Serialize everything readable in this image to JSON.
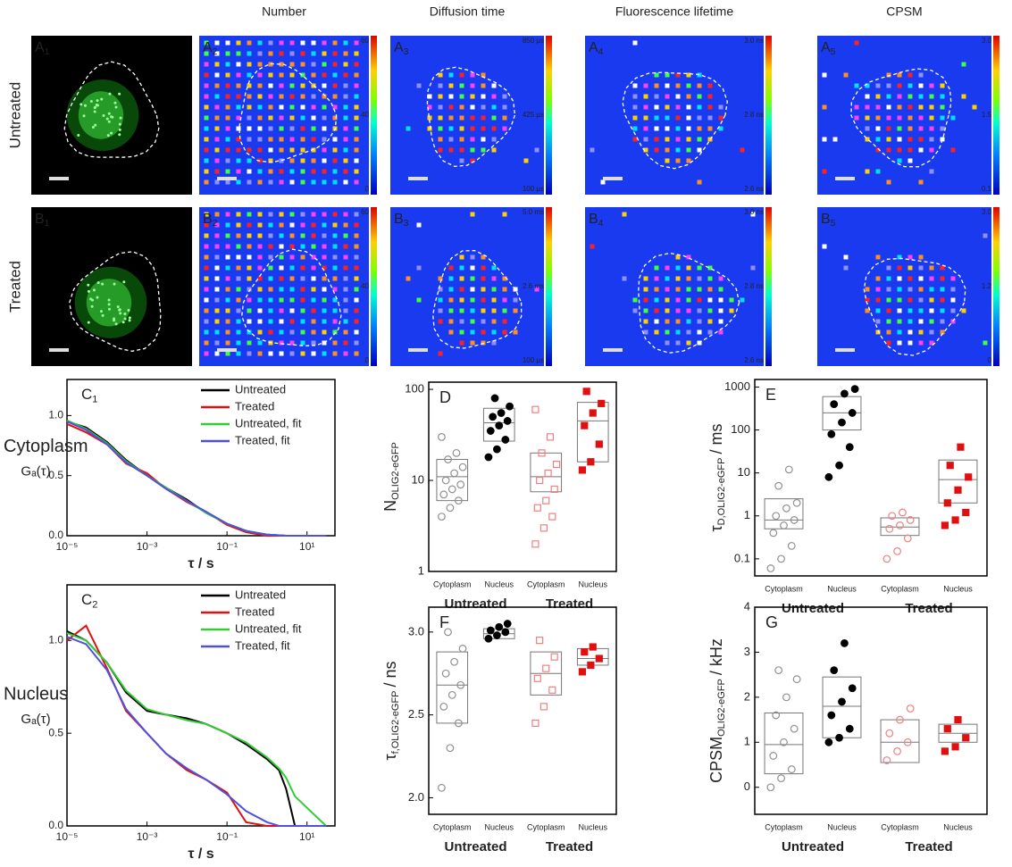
{
  "figure": {
    "row_labels": [
      "Untreated",
      "Treated"
    ],
    "column_titles": [
      "Number",
      "Diffusion time",
      "Fluorescence lifetime",
      "CPSM"
    ],
    "image_panels": [
      {
        "letter": "A",
        "sub": "1"
      },
      {
        "letter": "A",
        "sub": "2"
      },
      {
        "letter": "A",
        "sub": "3"
      },
      {
        "letter": "A",
        "sub": "4"
      },
      {
        "letter": "A",
        "sub": "5"
      },
      {
        "letter": "B",
        "sub": "1"
      },
      {
        "letter": "B",
        "sub": "2"
      },
      {
        "letter": "B",
        "sub": "3"
      },
      {
        "letter": "B",
        "sub": "4"
      },
      {
        "letter": "B",
        "sub": "5"
      }
    ],
    "colorbars": [
      {
        "panel": 1,
        "labels": [
          60,
          40,
          0
        ]
      },
      {
        "panel": 2,
        "labels": [
          "850 µs",
          "425 µs",
          "100 µs"
        ]
      },
      {
        "panel": 3,
        "labels": [
          "3.0 ns",
          "2.8 ns",
          "2.6 ns"
        ]
      },
      {
        "panel": 4,
        "labels": [
          "3.0",
          1.5,
          0.1
        ]
      },
      {
        "panel": 6,
        "labels": [
          60,
          40,
          0
        ]
      },
      {
        "panel": 7,
        "labels": [
          "5.0 ms",
          "2.6 ms",
          "100 µs"
        ]
      },
      {
        "panel": 8,
        "labels": [
          "3.0 ns",
          "2.8 ns",
          "2.6 ns"
        ]
      },
      {
        "panel": 9,
        "labels": [
          "3.0",
          1.2,
          0
        ]
      }
    ]
  },
  "chart_data": [
    {
      "type": "line",
      "label": {
        "letter": "C",
        "sub": "1"
      },
      "row_label": "Cytoplasm",
      "ylabel": "Gₐ(τ)",
      "xlabel": "τ / s",
      "log_x": true,
      "x": [
        1e-05,
        3e-05,
        0.0001,
        0.0003,
        0.001,
        0.003,
        0.01,
        0.03,
        0.1,
        0.3,
        1,
        3,
        30
      ],
      "xlim": [
        1e-05,
        50
      ],
      "ylim": [
        0,
        1.3
      ],
      "xticks": [
        {
          "value": 1e-05,
          "label": "10⁻⁵"
        },
        {
          "value": 0.001,
          "label": "10⁻³"
        },
        {
          "value": 0.1,
          "label": "10⁻¹"
        },
        {
          "value": 10,
          "label": "10¹"
        }
      ],
      "yticks": [
        {
          "value": 0,
          "label": "0.0"
        },
        0.5,
        {
          "value": 1,
          "label": "1.0"
        }
      ],
      "series": [
        {
          "name": "Untreated",
          "color": "#000000",
          "values": [
            0.95,
            0.9,
            0.78,
            0.63,
            0.5,
            0.4,
            0.3,
            0.19,
            0.1,
            0.04,
            0.01,
            0,
            0
          ]
        },
        {
          "name": "Treated",
          "color": "#e01010",
          "values": [
            0.93,
            0.86,
            0.76,
            0.6,
            0.52,
            0.39,
            0.28,
            0.2,
            0.09,
            0.03,
            0,
            0,
            0
          ]
        },
        {
          "name": "Untreated, fit",
          "color": "#33cc33",
          "values": [
            0.96,
            0.89,
            0.77,
            0.62,
            0.5,
            0.4,
            0.29,
            0.19,
            0.1,
            0.04,
            0.01,
            0,
            0
          ]
        },
        {
          "name": "Treated, fit",
          "color": "#5050e0",
          "values": [
            0.95,
            0.88,
            0.76,
            0.61,
            0.5,
            0.39,
            0.29,
            0.2,
            0.1,
            0.04,
            0.01,
            0,
            0
          ]
        }
      ]
    },
    {
      "type": "line",
      "label": {
        "letter": "C",
        "sub": "2"
      },
      "row_label": "Nucleus",
      "ylabel": "Gₐ(τ)",
      "xlabel": "τ / s",
      "log_x": true,
      "x": [
        1e-05,
        3e-05,
        0.0001,
        0.0003,
        0.001,
        0.003,
        0.01,
        0.03,
        0.1,
        0.3,
        1,
        2,
        3,
        5,
        30
      ],
      "xlim": [
        1e-05,
        50
      ],
      "ylim": [
        0,
        1.3
      ],
      "xticks": [
        {
          "value": 1e-05,
          "label": "10⁻⁵"
        },
        {
          "value": 0.001,
          "label": "10⁻³"
        },
        {
          "value": 0.1,
          "label": "10⁻¹"
        },
        {
          "value": 10,
          "label": "10¹"
        }
      ],
      "yticks": [
        {
          "value": 0,
          "label": "0.0"
        },
        0.5,
        {
          "value": 1,
          "label": "1.0"
        }
      ],
      "series": [
        {
          "name": "Untreated",
          "color": "#000000",
          "values": [
            1.05,
            1.0,
            0.88,
            0.72,
            0.62,
            0.6,
            0.58,
            0.55,
            0.5,
            0.44,
            0.36,
            0.3,
            0.2,
            0,
            0
          ]
        },
        {
          "name": "Treated",
          "color": "#e01010",
          "values": [
            1.0,
            1.08,
            0.85,
            0.62,
            0.5,
            0.39,
            0.3,
            0.25,
            0.18,
            0.02,
            0,
            0,
            0,
            0,
            0
          ]
        },
        {
          "name": "Untreated, fit",
          "color": "#33cc33",
          "values": [
            1.04,
            1.0,
            0.88,
            0.73,
            0.63,
            0.6,
            0.57,
            0.55,
            0.5,
            0.45,
            0.37,
            0.31,
            0.26,
            0.16,
            0
          ]
        },
        {
          "name": "Treated, fit",
          "color": "#5050e0",
          "values": [
            1.02,
            0.98,
            0.84,
            0.63,
            0.5,
            0.39,
            0.31,
            0.25,
            0.17,
            0.08,
            0.02,
            0,
            0,
            0,
            0
          ]
        }
      ]
    },
    {
      "type": "box",
      "label": "D",
      "ylabel": {
        "main": "N",
        "sub": "OLIG2-eGFP"
      },
      "log_y": true,
      "categories": [
        "Cytoplasm",
        "Nucleus",
        "Cytoplasm",
        "Nucleus"
      ],
      "group_labels": [
        "Untreated",
        "Treated"
      ],
      "colors": [
        "#909090",
        "#000000",
        "#f08080",
        "#e01010"
      ],
      "filled": [
        false,
        true,
        false,
        true
      ],
      "markers": [
        "circle",
        "circle",
        "square",
        "square"
      ],
      "ylim": [
        1,
        120
      ],
      "yticks": [
        1,
        10,
        100
      ],
      "boxes": [
        [
          6,
          11,
          17
        ],
        [
          27,
          43,
          62
        ],
        [
          7.5,
          11,
          20
        ],
        [
          16,
          45,
          72
        ]
      ],
      "points": [
        [
          4,
          5,
          6,
          7,
          8,
          9,
          10,
          12,
          14,
          17,
          20,
          30
        ],
        [
          18,
          22,
          28,
          35,
          40,
          45,
          50,
          55,
          65,
          80
        ],
        [
          2,
          3,
          4,
          5,
          6,
          8,
          10,
          12,
          15,
          20,
          30,
          60
        ],
        [
          13,
          16,
          25,
          40,
          55,
          70,
          95
        ]
      ]
    },
    {
      "type": "box",
      "label": "E",
      "ylabel": {
        "main": "τ",
        "sub": "D,OLIG2-eGFP",
        "unit": "/ ms"
      },
      "log_y": true,
      "categories": [
        "Cytoplasm",
        "Nucleus",
        "Cytoplasm",
        "Nucleus"
      ],
      "group_labels": [
        "Untreated",
        "Treated"
      ],
      "colors": [
        "#909090",
        "#000000",
        "#f08080",
        "#e01010"
      ],
      "filled": [
        false,
        true,
        false,
        true
      ],
      "markers": [
        "circle",
        "circle",
        "circle",
        "square"
      ],
      "ylim": [
        0.04,
        1500
      ],
      "yticks": [
        0.1,
        1,
        10,
        100,
        1000
      ],
      "boxes": [
        [
          0.5,
          0.8,
          2.5
        ],
        [
          100,
          250,
          600
        ],
        [
          0.35,
          0.55,
          0.9
        ],
        [
          2,
          7,
          20
        ]
      ],
      "points": [
        [
          0.06,
          0.1,
          0.2,
          0.4,
          0.6,
          0.8,
          1,
          1.5,
          2,
          5,
          12
        ],
        [
          8,
          15,
          40,
          80,
          150,
          250,
          400,
          700,
          900
        ],
        [
          0.1,
          0.15,
          0.3,
          0.5,
          0.6,
          0.8,
          1,
          1.2
        ],
        [
          0.6,
          0.8,
          1.2,
          2,
          4,
          8,
          15,
          40
        ]
      ]
    },
    {
      "type": "box",
      "label": "F",
      "ylabel": {
        "main": "τ",
        "sub": "f,OLIG2-eGFP",
        "unit": "/ ns"
      },
      "log_y": false,
      "categories": [
        "Cytoplasm",
        "Nucleus",
        "Cytoplasm",
        "Nucleus"
      ],
      "group_labels": [
        "Untreated",
        "Treated"
      ],
      "colors": [
        "#909090",
        "#000000",
        "#f08080",
        "#e01010"
      ],
      "filled": [
        false,
        true,
        false,
        true
      ],
      "markers": [
        "circle",
        "circle",
        "square",
        "square"
      ],
      "ylim": [
        1.9,
        3.15
      ],
      "yticks": [
        {
          "value": 2,
          "label": "2.0"
        },
        2.5,
        {
          "value": 3,
          "label": "3.0"
        }
      ],
      "boxes": [
        [
          2.45,
          2.68,
          2.88
        ],
        [
          2.96,
          2.99,
          3.02
        ],
        [
          2.62,
          2.75,
          2.88
        ],
        [
          2.8,
          2.84,
          2.9
        ]
      ],
      "points": [
        [
          2.06,
          2.3,
          2.45,
          2.55,
          2.62,
          2.68,
          2.75,
          2.82,
          2.9,
          3.0
        ],
        [
          2.96,
          2.98,
          3.0,
          3.01,
          3.03,
          3.05
        ],
        [
          2.45,
          2.55,
          2.65,
          2.72,
          2.78,
          2.85,
          2.95
        ],
        [
          2.76,
          2.8,
          2.84,
          2.88,
          2.91
        ]
      ]
    },
    {
      "type": "box",
      "label": "G",
      "ylabel": {
        "main": "CPSM",
        "sub": "OLIG2-eGFP",
        "unit": "/ kHz"
      },
      "log_y": false,
      "categories": [
        "Cytoplasm",
        "Nucleus",
        "Cytoplasm",
        "Nucleus"
      ],
      "group_labels": [
        "Untreated",
        "Treated"
      ],
      "colors": [
        "#909090",
        "#000000",
        "#f08080",
        "#e01010"
      ],
      "filled": [
        false,
        true,
        false,
        true
      ],
      "markers": [
        "circle",
        "circle",
        "circle",
        "square"
      ],
      "ylim": [
        -0.6,
        4
      ],
      "yticks": [
        0,
        1,
        2,
        3,
        4
      ],
      "boxes": [
        [
          0.3,
          0.95,
          1.65
        ],
        [
          1.1,
          1.8,
          2.45
        ],
        [
          0.55,
          1,
          1.5
        ],
        [
          1,
          1.2,
          1.4
        ]
      ],
      "points": [
        [
          0,
          0.2,
          0.4,
          0.7,
          1,
          1.3,
          1.6,
          2,
          2.4,
          2.6
        ],
        [
          1,
          1.1,
          1.3,
          1.6,
          1.9,
          2.2,
          2.6,
          3.2
        ],
        [
          0.6,
          0.8,
          1,
          1.2,
          1.5,
          1.75
        ],
        [
          0.8,
          0.9,
          1.1,
          1.3,
          1.5
        ]
      ]
    }
  ]
}
